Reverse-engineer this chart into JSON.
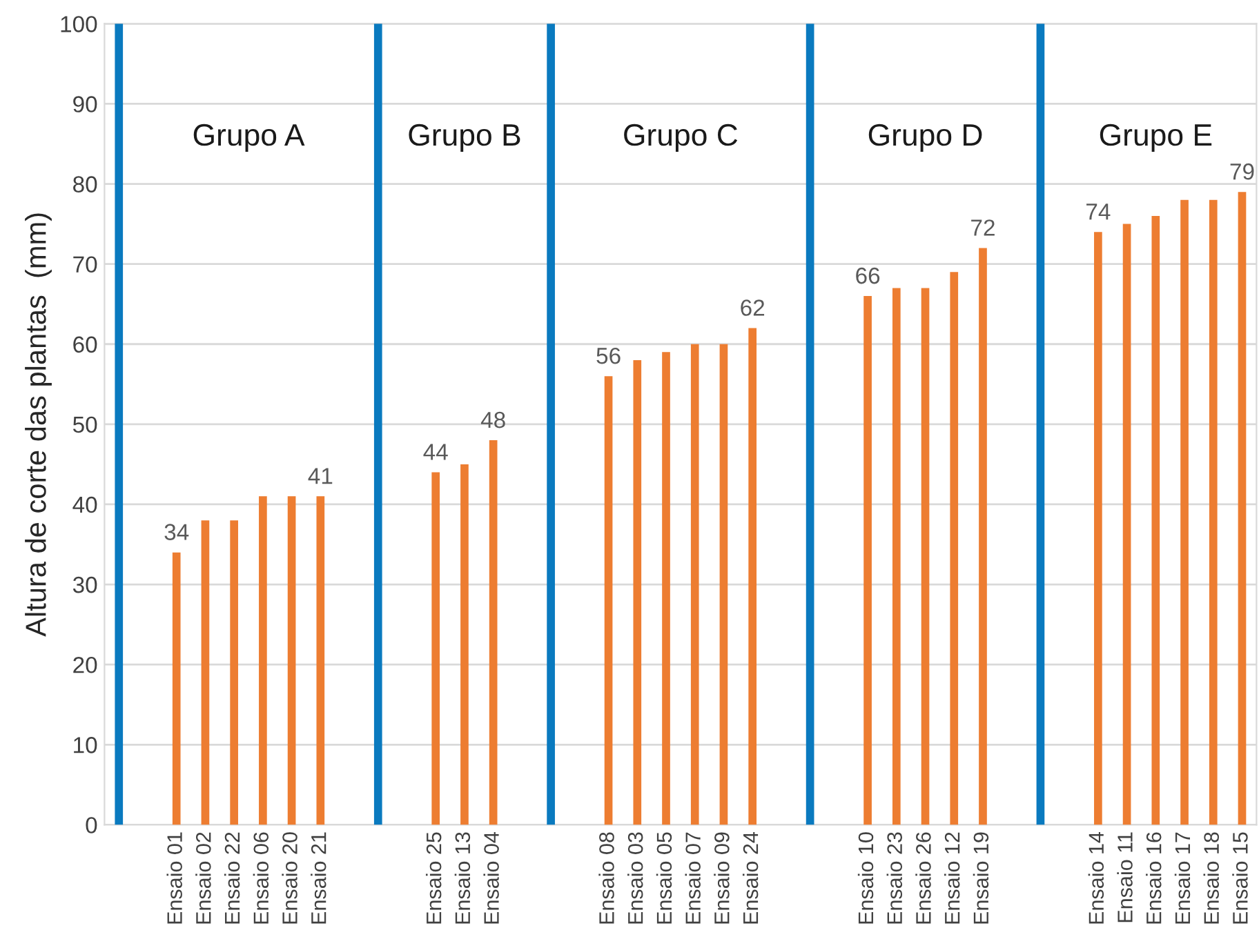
{
  "chart_data": {
    "type": "bar",
    "ylabel": "Altura de corte das plantas  (mm)",
    "categories": [
      null,
      null,
      "Ensaio 01",
      "Ensaio 02",
      "Ensaio 22",
      "Ensaio 06",
      "Ensaio 20",
      "Ensaio 21",
      null,
      null,
      null,
      "Ensaio 25",
      "Ensaio 13",
      "Ensaio 04",
      null,
      null,
      null,
      "Ensaio 08",
      "Ensaio 03",
      "Ensaio 05",
      "Ensaio 07",
      "Ensaio 09",
      "Ensaio 24",
      null,
      null,
      null,
      "Ensaio 10",
      "Ensaio 23",
      "Ensaio 26",
      "Ensaio 12",
      "Ensaio 19",
      null,
      null,
      null,
      "Ensaio 14",
      "Ensaio 11",
      "Ensaio 16",
      "Ensaio 17",
      "Ensaio 18",
      "Ensaio 15"
    ],
    "series": [
      {
        "color": "#0a7abf",
        "values": [
          100,
          null,
          null,
          null,
          null,
          null,
          null,
          null,
          null,
          100,
          null,
          null,
          null,
          null,
          null,
          100,
          null,
          null,
          null,
          null,
          null,
          null,
          null,
          null,
          100,
          null,
          null,
          null,
          null,
          null,
          null,
          null,
          100,
          null,
          null,
          null,
          null,
          null,
          null,
          null
        ]
      },
      {
        "color": "#ed7d31",
        "values": [
          null,
          null,
          34,
          38,
          38,
          41,
          41,
          41,
          null,
          null,
          null,
          44,
          45,
          48,
          null,
          null,
          null,
          56,
          58,
          59,
          60,
          60,
          62,
          null,
          null,
          null,
          66,
          67,
          67,
          69,
          72,
          null,
          null,
          null,
          74,
          75,
          76,
          78,
          78,
          79
        ],
        "value_labels": [
          null,
          null,
          "34",
          null,
          null,
          null,
          null,
          "41",
          null,
          null,
          null,
          "44",
          null,
          "48",
          null,
          null,
          null,
          "56",
          null,
          null,
          null,
          null,
          "62",
          null,
          null,
          null,
          "66",
          null,
          null,
          null,
          "72",
          null,
          null,
          null,
          "74",
          null,
          null,
          null,
          null,
          "79"
        ]
      }
    ],
    "annotations": [
      "Grupo A",
      "Grupo B",
      "Grupo C",
      "Grupo D",
      "Grupo E"
    ],
    "ylim": [
      0,
      100
    ],
    "yticks": [
      0,
      10,
      20,
      30,
      40,
      50,
      60,
      70,
      80,
      90,
      100
    ],
    "grid": "y",
    "legend": false
  }
}
